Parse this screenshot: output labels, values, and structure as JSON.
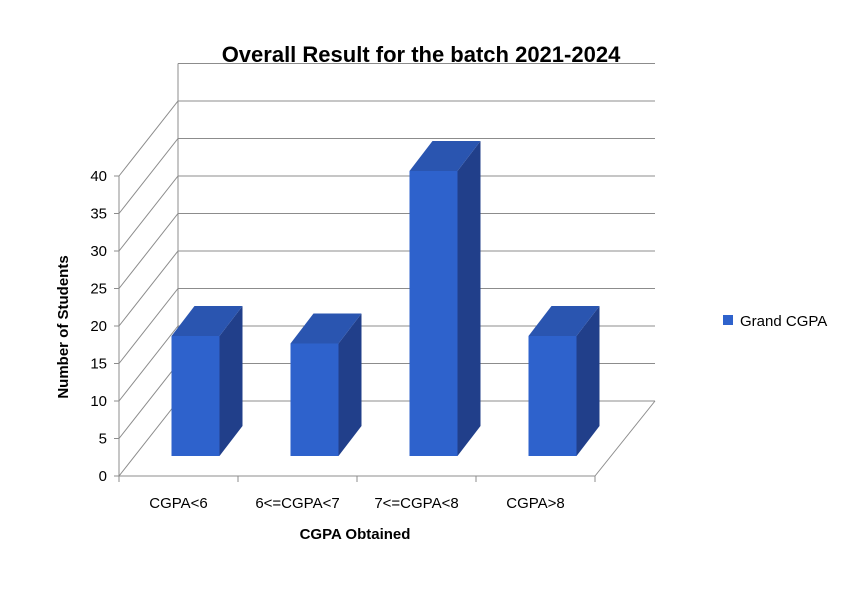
{
  "chart_data": {
    "type": "bar",
    "title": "Overall Result for the batch 2021-2024",
    "xlabel": "CGPA Obtained",
    "ylabel": "Number of Students",
    "categories": [
      "CGPA<6",
      "6<=CGPA<7",
      "7<=CGPA<8",
      "CGPA>8"
    ],
    "series": [
      {
        "name": "Grand CGPA",
        "values": [
          16,
          15,
          38,
          16
        ],
        "color": "#2e62cc"
      }
    ],
    "ylim": [
      0,
      40
    ],
    "yticks": [
      0,
      5,
      10,
      15,
      20,
      25,
      30,
      35,
      40
    ],
    "grid": true,
    "legend_position": "right",
    "style": "3d-column"
  }
}
